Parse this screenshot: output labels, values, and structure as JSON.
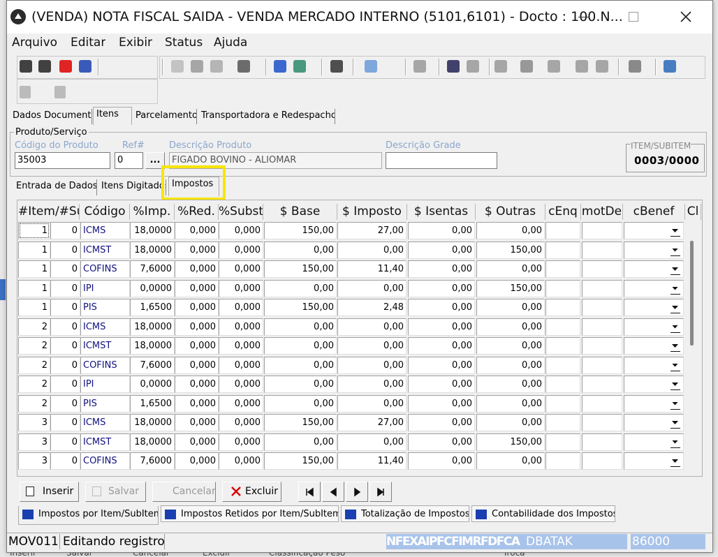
{
  "window": {
    "title": "(VENDA) NOTA FISCAL SAIDA - VENDA MERCADO INTERNO (5101,6101) - Docto : 100.N..."
  },
  "menu": [
    "Arquivo",
    "Editar",
    "Exibir",
    "Status",
    "Ajuda"
  ],
  "tabs": [
    "Dados Documento",
    "Itens",
    "Parcelamento",
    "Transportadora e Redespacho"
  ],
  "product": {
    "group_title": "Produto/Serviço",
    "code_label": "Código do Produto",
    "code": "35003",
    "ref_label": "Ref#",
    "ref": "0",
    "lookup_button": "...",
    "description_label": "Descrição Produto",
    "description": "FIGADO BOVINO - ALIOMAR",
    "grade_label": "Descrição Grade",
    "item_label": "ITEM/SUBITEM",
    "item": "0003/0000"
  },
  "subtabs": [
    "Entrada de Dados",
    "Itens Digitados",
    "Impostos"
  ],
  "table": {
    "columns": [
      "#Item/#Su",
      "Código",
      "%Imp.",
      "%Red.",
      "%Subst",
      "$ Base",
      "$ Imposto",
      "$ Isentas",
      "$ Outras",
      "cEnq",
      "motDe",
      "cBenef",
      "Cl"
    ],
    "rows": [
      [
        "1",
        "0",
        "ICMS",
        "18,0000",
        "0,000",
        "0,000",
        "150,00",
        "27,00",
        "0,00",
        "0,00"
      ],
      [
        "1",
        "0",
        "ICMST",
        "18,0000",
        "0,000",
        "0,000",
        "0,00",
        "0,00",
        "0,00",
        "150,00"
      ],
      [
        "1",
        "0",
        "COFINS",
        "7,6000",
        "0,000",
        "0,000",
        "150,00",
        "11,40",
        "0,00",
        "0,00"
      ],
      [
        "1",
        "0",
        "IPI",
        "0,0000",
        "0,000",
        "0,000",
        "0,00",
        "0,00",
        "0,00",
        "150,00"
      ],
      [
        "1",
        "0",
        "PIS",
        "1,6500",
        "0,000",
        "0,000",
        "150,00",
        "2,48",
        "0,00",
        "0,00"
      ],
      [
        "2",
        "0",
        "ICMS",
        "18,0000",
        "0,000",
        "0,000",
        "0,00",
        "0,00",
        "0,00",
        "0,00"
      ],
      [
        "2",
        "0",
        "ICMST",
        "18,0000",
        "0,000",
        "0,000",
        "0,00",
        "0,00",
        "0,00",
        "0,00"
      ],
      [
        "2",
        "0",
        "COFINS",
        "7,6000",
        "0,000",
        "0,000",
        "0,00",
        "0,00",
        "0,00",
        "0,00"
      ],
      [
        "2",
        "0",
        "IPI",
        "0,0000",
        "0,000",
        "0,000",
        "0,00",
        "0,00",
        "0,00",
        "0,00"
      ],
      [
        "2",
        "0",
        "PIS",
        "1,6500",
        "0,000",
        "0,000",
        "0,00",
        "0,00",
        "0,00",
        "0,00"
      ],
      [
        "3",
        "0",
        "ICMS",
        "18,0000",
        "0,000",
        "0,000",
        "150,00",
        "27,00",
        "0,00",
        "0,00"
      ],
      [
        "3",
        "0",
        "ICMST",
        "18,0000",
        "0,000",
        "0,000",
        "0,00",
        "0,00",
        "0,00",
        "150,00"
      ],
      [
        "3",
        "0",
        "COFINS",
        "7,6000",
        "0,000",
        "0,000",
        "150,00",
        "11,40",
        "0,00",
        "0,00"
      ]
    ]
  },
  "buttons": [
    "Inserir",
    "Salvar",
    "Cancelar",
    "Excluir"
  ],
  "bottom_tabs": [
    "Impostos por Item/SubItem",
    "Impostos Retidos por Item/SubItem",
    "Totalização de Impostos",
    "Contabilidade dos Impostos"
  ],
  "status_bar": [
    "MOV011",
    "Editando registro",
    "NFEXAIPFCFIMRFDFCA",
    "DBATAK",
    "86000"
  ],
  "background_toolbar": [
    "Inserir",
    "Salvar",
    "Cancelar",
    "Excluir",
    "Classificação Peso",
    "Troca"
  ]
}
